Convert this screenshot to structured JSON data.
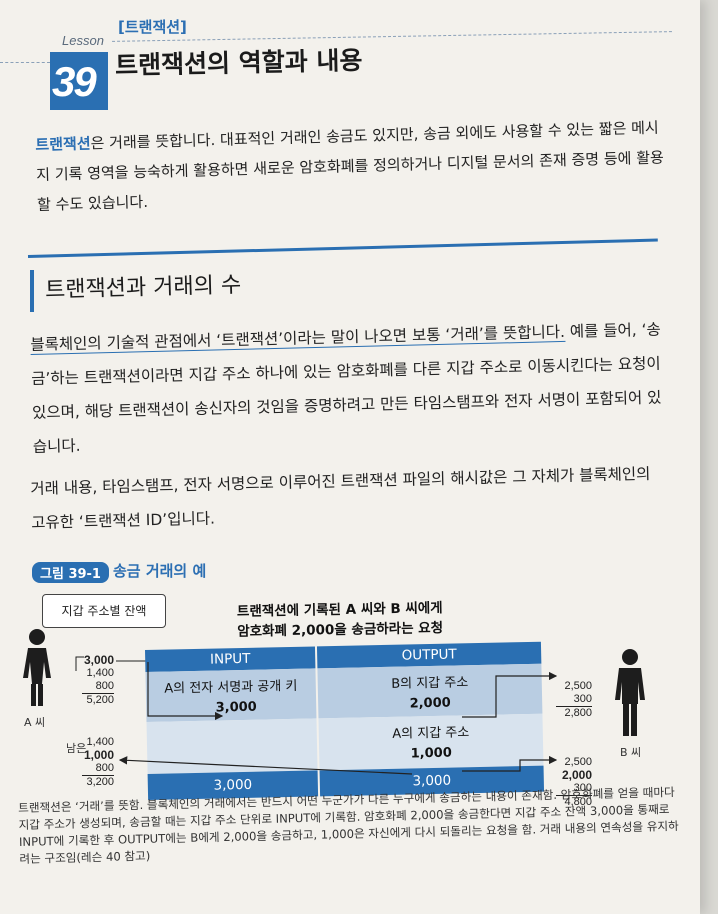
{
  "lesson": {
    "label": "Lesson",
    "number": "39",
    "tag": "[트랜잭션]",
    "title": "트랜잭션의 역할과 내용"
  },
  "intro": {
    "keyword": "트랜잭션",
    "text": "은 거래를 뜻합니다. 대표적인 거래인 송금도 있지만, 송금 외에도 사용할 수 있는 짧은 메시지 기록 영역을 능숙하게 활용하면 새로운 암호화폐를 정의하거나 디지털 문서의 존재 증명 등에 활용할 수도 있습니다."
  },
  "section": {
    "title": "트랜잭션과 거래의 수"
  },
  "para1": {
    "underlined": "블록체인의 기술적 관점에서 ‘트랜잭션’이라는 말이 나오면 보통 ‘거래’를 뜻합니다.",
    "rest": " 예를 들어, ‘송금’하는 트랜잭션이라면 지갑 주소 하나에 있는 암호화폐를 다른 지갑 주소로 이동시킨다는 요청이 있으며, 해당 트랜잭션이 송신자의 것임을 증명하려고 만든 타임스탬프와 전자 서명이 포함되어 있습니다."
  },
  "para2": {
    "text": "거래 내용, 타임스탬프, 전자 서명으로 이루어진 트랜잭션 파일의 해시값은 그 자체가 블록체인의 고유한 ‘트랜잭션 ID’입니다."
  },
  "figure": {
    "label": "그림 39-1",
    "title": "송금 거래의 예",
    "callout": "지갑 주소별 잔액",
    "heading1": "트랜잭션에 기록된 A 씨와 B 씨에게",
    "heading2": "암호화폐 2,000을 송금하라는 요청",
    "person_a": "A 씨",
    "person_b": "B 씨",
    "input_header": "INPUT",
    "output_header": "OUTPUT",
    "input_row1": "A의 전자 서명과 공개 키",
    "input_val": "3,000",
    "input_total": "3,000",
    "output_row1": "B의 지갑 주소",
    "output_val1": "2,000",
    "output_row2": "A의 지갑 주소",
    "output_val2": "1,000",
    "output_total": "3,000",
    "a_before": [
      "3,000",
      "1,400",
      "800"
    ],
    "a_before_sum": "5,200",
    "a_after_label": "남은",
    "a_after": [
      "1,400",
      "1,000",
      "800"
    ],
    "a_after_sum": "3,200",
    "b_before": [
      "2,500",
      "300"
    ],
    "b_before_sum": "2,800",
    "b_after": [
      "2,500",
      "2,000",
      "300"
    ],
    "b_after_sum": "4,800"
  },
  "caption": "트랜잭션은 ‘거래’를 뜻함. 블록체인의 거래에서는 반드시 어떤 누군가가 다른 누구에게 송금하는 내용이 존재함. 암호화폐를 얻을 때마다 지갑 주소가 생성되며, 송금할 때는 지갑 주소 단위로 INPUT에 기록함. 암호화폐 2,000을 송금한다면 지갑 주소 잔액 3,000을 통째로 INPUT에 기록한 후 OUTPUT에는 B에게 2,000을 송금하고, 1,000은 자신에게 다시 되돌리는 요청을 함. 거래 내용의 연속성을 유지하려는 구조임(레슨 40 참고)",
  "colors": {
    "accent": "#2a6fb2",
    "light": "#b9cde2"
  }
}
